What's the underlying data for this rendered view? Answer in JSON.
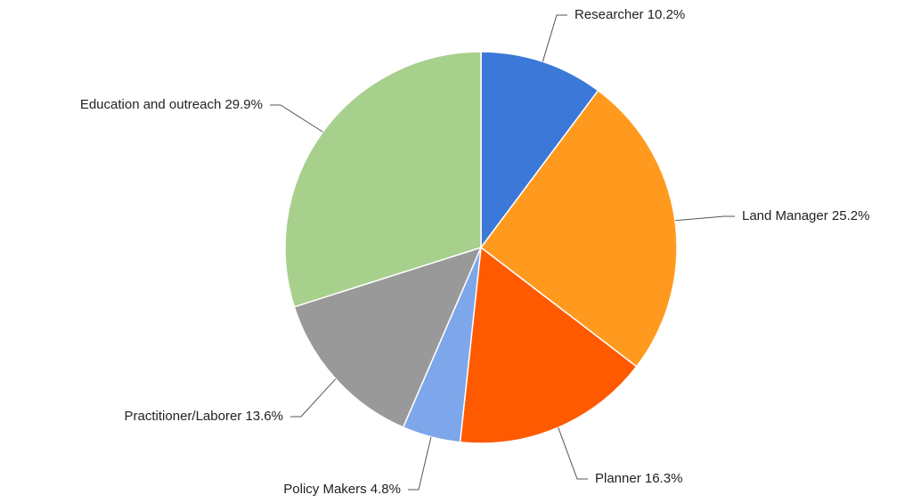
{
  "chart_data": {
    "type": "pie",
    "categories": [
      "Researcher",
      "Land Manager",
      "Planner",
      "Policy Makers",
      "Practitioner/Laborer",
      "Education and outreach"
    ],
    "values": [
      10.2,
      25.2,
      16.3,
      4.8,
      13.6,
      29.9
    ],
    "value_labels": [
      "10.2%",
      "25.2%",
      "16.3%",
      "4.8%",
      "13.6%",
      "29.9%"
    ],
    "colors": [
      "#3c78d8",
      "#ff9a1f",
      "#ff5a00",
      "#7da7ea",
      "#999999",
      "#a7d08c"
    ]
  }
}
